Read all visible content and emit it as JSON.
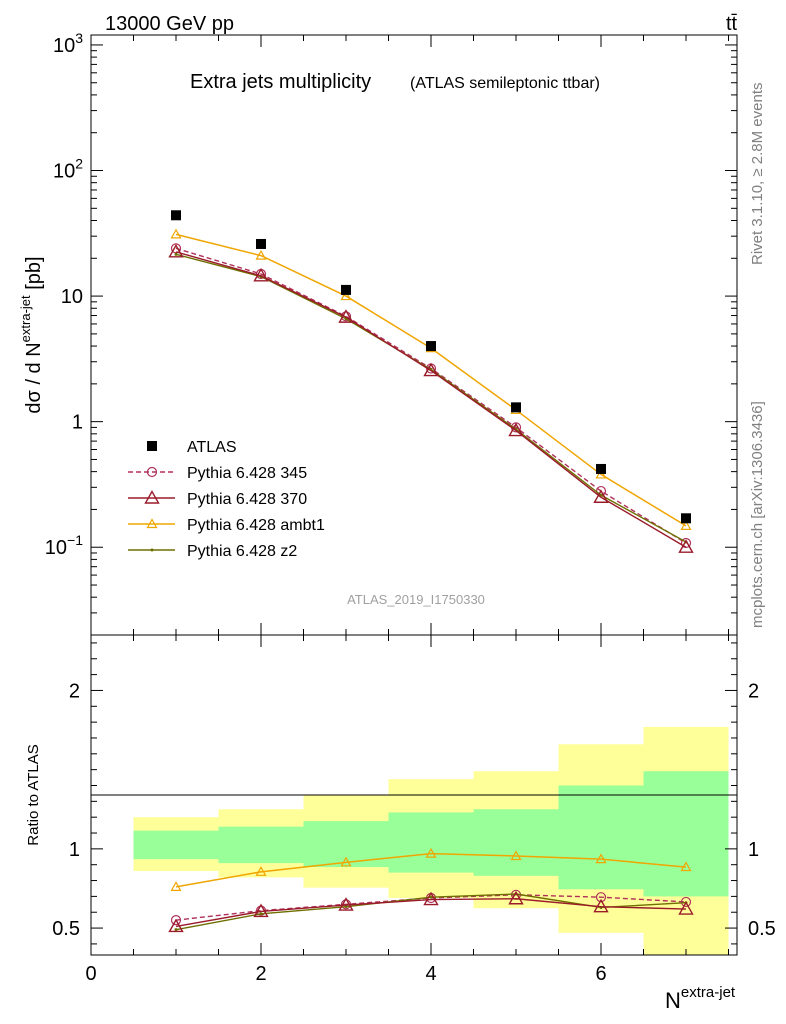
{
  "header": {
    "left": "13000 GeV pp",
    "right": "tt̄"
  },
  "side_labels": {
    "rivet": "Rivet 3.1.10, ≥ 2.8M events",
    "mcplots": "mcplots.cern.ch [arXiv:1306.3436]"
  },
  "colors": {
    "data": "#000000",
    "p345": "#b0305a",
    "p370": "#9a1b2a",
    "ambt1": "#f0a500",
    "z2": "#6f6f00",
    "band_inner": "#99ff99",
    "band_outer": "#ffff99"
  },
  "chart_data": [
    {
      "type": "scatter",
      "title": "Extra jets multiplicity",
      "subtitle": "(ATLAS semileptonic ttbar)",
      "analysis_id": "ATLAS_2019_I1750330",
      "ylabel": "dσ / d N",
      "ylabel_sup": "extra-jet",
      "ylabel_unit": " [pb]",
      "yscale": "log",
      "ylim": [
        0.02,
        1200
      ],
      "xlim": [
        0,
        7.6
      ],
      "yticks": [
        {
          "v": 1000,
          "base": "10",
          "exp": "3"
        },
        {
          "v": 100,
          "base": "10",
          "exp": "2"
        },
        {
          "v": 10,
          "base": "10",
          "exp": ""
        },
        {
          "v": 1,
          "base": "1",
          "exp": ""
        },
        {
          "v": 0.1,
          "base": "10",
          "exp": "−1"
        }
      ],
      "x": [
        1,
        2,
        3,
        4,
        5,
        6,
        7
      ],
      "series": [
        {
          "name": "ATLAS",
          "key": "data",
          "values": [
            44,
            26,
            11.2,
            4.0,
            1.3,
            0.42,
            0.17
          ]
        },
        {
          "name": "Pythia 6.428 345",
          "key": "p345",
          "values": [
            24,
            15,
            6.9,
            2.65,
            0.9,
            0.28,
            0.108
          ]
        },
        {
          "name": "Pythia 6.428 370",
          "key": "p370",
          "values": [
            22.5,
            14.5,
            6.8,
            2.55,
            0.85,
            0.25,
            0.1
          ]
        },
        {
          "name": "Pythia 6.428 ambt1",
          "key": "ambt1",
          "values": [
            31,
            21,
            10,
            3.85,
            1.24,
            0.38,
            0.148
          ]
        },
        {
          "name": "Pythia 6.428 z2",
          "key": "z2",
          "values": [
            21.5,
            14.3,
            6.6,
            2.6,
            0.87,
            0.26,
            0.11
          ]
        }
      ]
    },
    {
      "type": "line",
      "ylabel": "Ratio to ATLAS",
      "xlabel": "N",
      "xlabel_sup": "extra-jet",
      "ylim": [
        0.33,
        2.35
      ],
      "xlim": [
        0,
        7.6
      ],
      "xticks": [
        "0",
        "2",
        "4",
        "6"
      ],
      "yticks": [
        "0.5",
        "1",
        "2"
      ],
      "bins": [
        {
          "lo": 0.5,
          "hi": 1.5,
          "inner": [
            0.935,
            1.115
          ],
          "outer": [
            0.86,
            1.2
          ]
        },
        {
          "lo": 1.5,
          "hi": 2.5,
          "inner": [
            0.91,
            1.14
          ],
          "outer": [
            0.82,
            1.25
          ]
        },
        {
          "lo": 2.5,
          "hi": 3.5,
          "inner": [
            0.885,
            1.175
          ],
          "outer": [
            0.755,
            1.34
          ]
        },
        {
          "lo": 3.5,
          "hi": 4.5,
          "inner": [
            0.85,
            1.23
          ],
          "outer": [
            0.69,
            1.44
          ]
        },
        {
          "lo": 4.5,
          "hi": 5.5,
          "inner": [
            0.83,
            1.25
          ],
          "outer": [
            0.625,
            1.49
          ]
        },
        {
          "lo": 5.5,
          "hi": 6.5,
          "inner": [
            0.745,
            1.4
          ],
          "outer": [
            0.47,
            1.66
          ]
        },
        {
          "lo": 6.5,
          "hi": 7.5,
          "inner": [
            0.7,
            1.49
          ],
          "outer": [
            0.33,
            1.77
          ]
        }
      ],
      "series": [
        {
          "name": "Pythia 6.428 345",
          "key": "p345",
          "values": [
            0.55,
            0.61,
            0.65,
            0.69,
            0.71,
            0.695,
            0.665
          ]
        },
        {
          "name": "Pythia 6.428 370",
          "key": "p370",
          "values": [
            0.51,
            0.605,
            0.645,
            0.68,
            0.685,
            0.635,
            0.62
          ]
        },
        {
          "name": "Pythia 6.428 ambt1",
          "key": "ambt1",
          "values": [
            0.76,
            0.855,
            0.915,
            0.97,
            0.955,
            0.935,
            0.885
          ]
        },
        {
          "name": "Pythia 6.428 z2",
          "key": "z2",
          "values": [
            0.49,
            0.59,
            0.635,
            0.695,
            0.715,
            0.63,
            0.66
          ]
        }
      ]
    }
  ]
}
